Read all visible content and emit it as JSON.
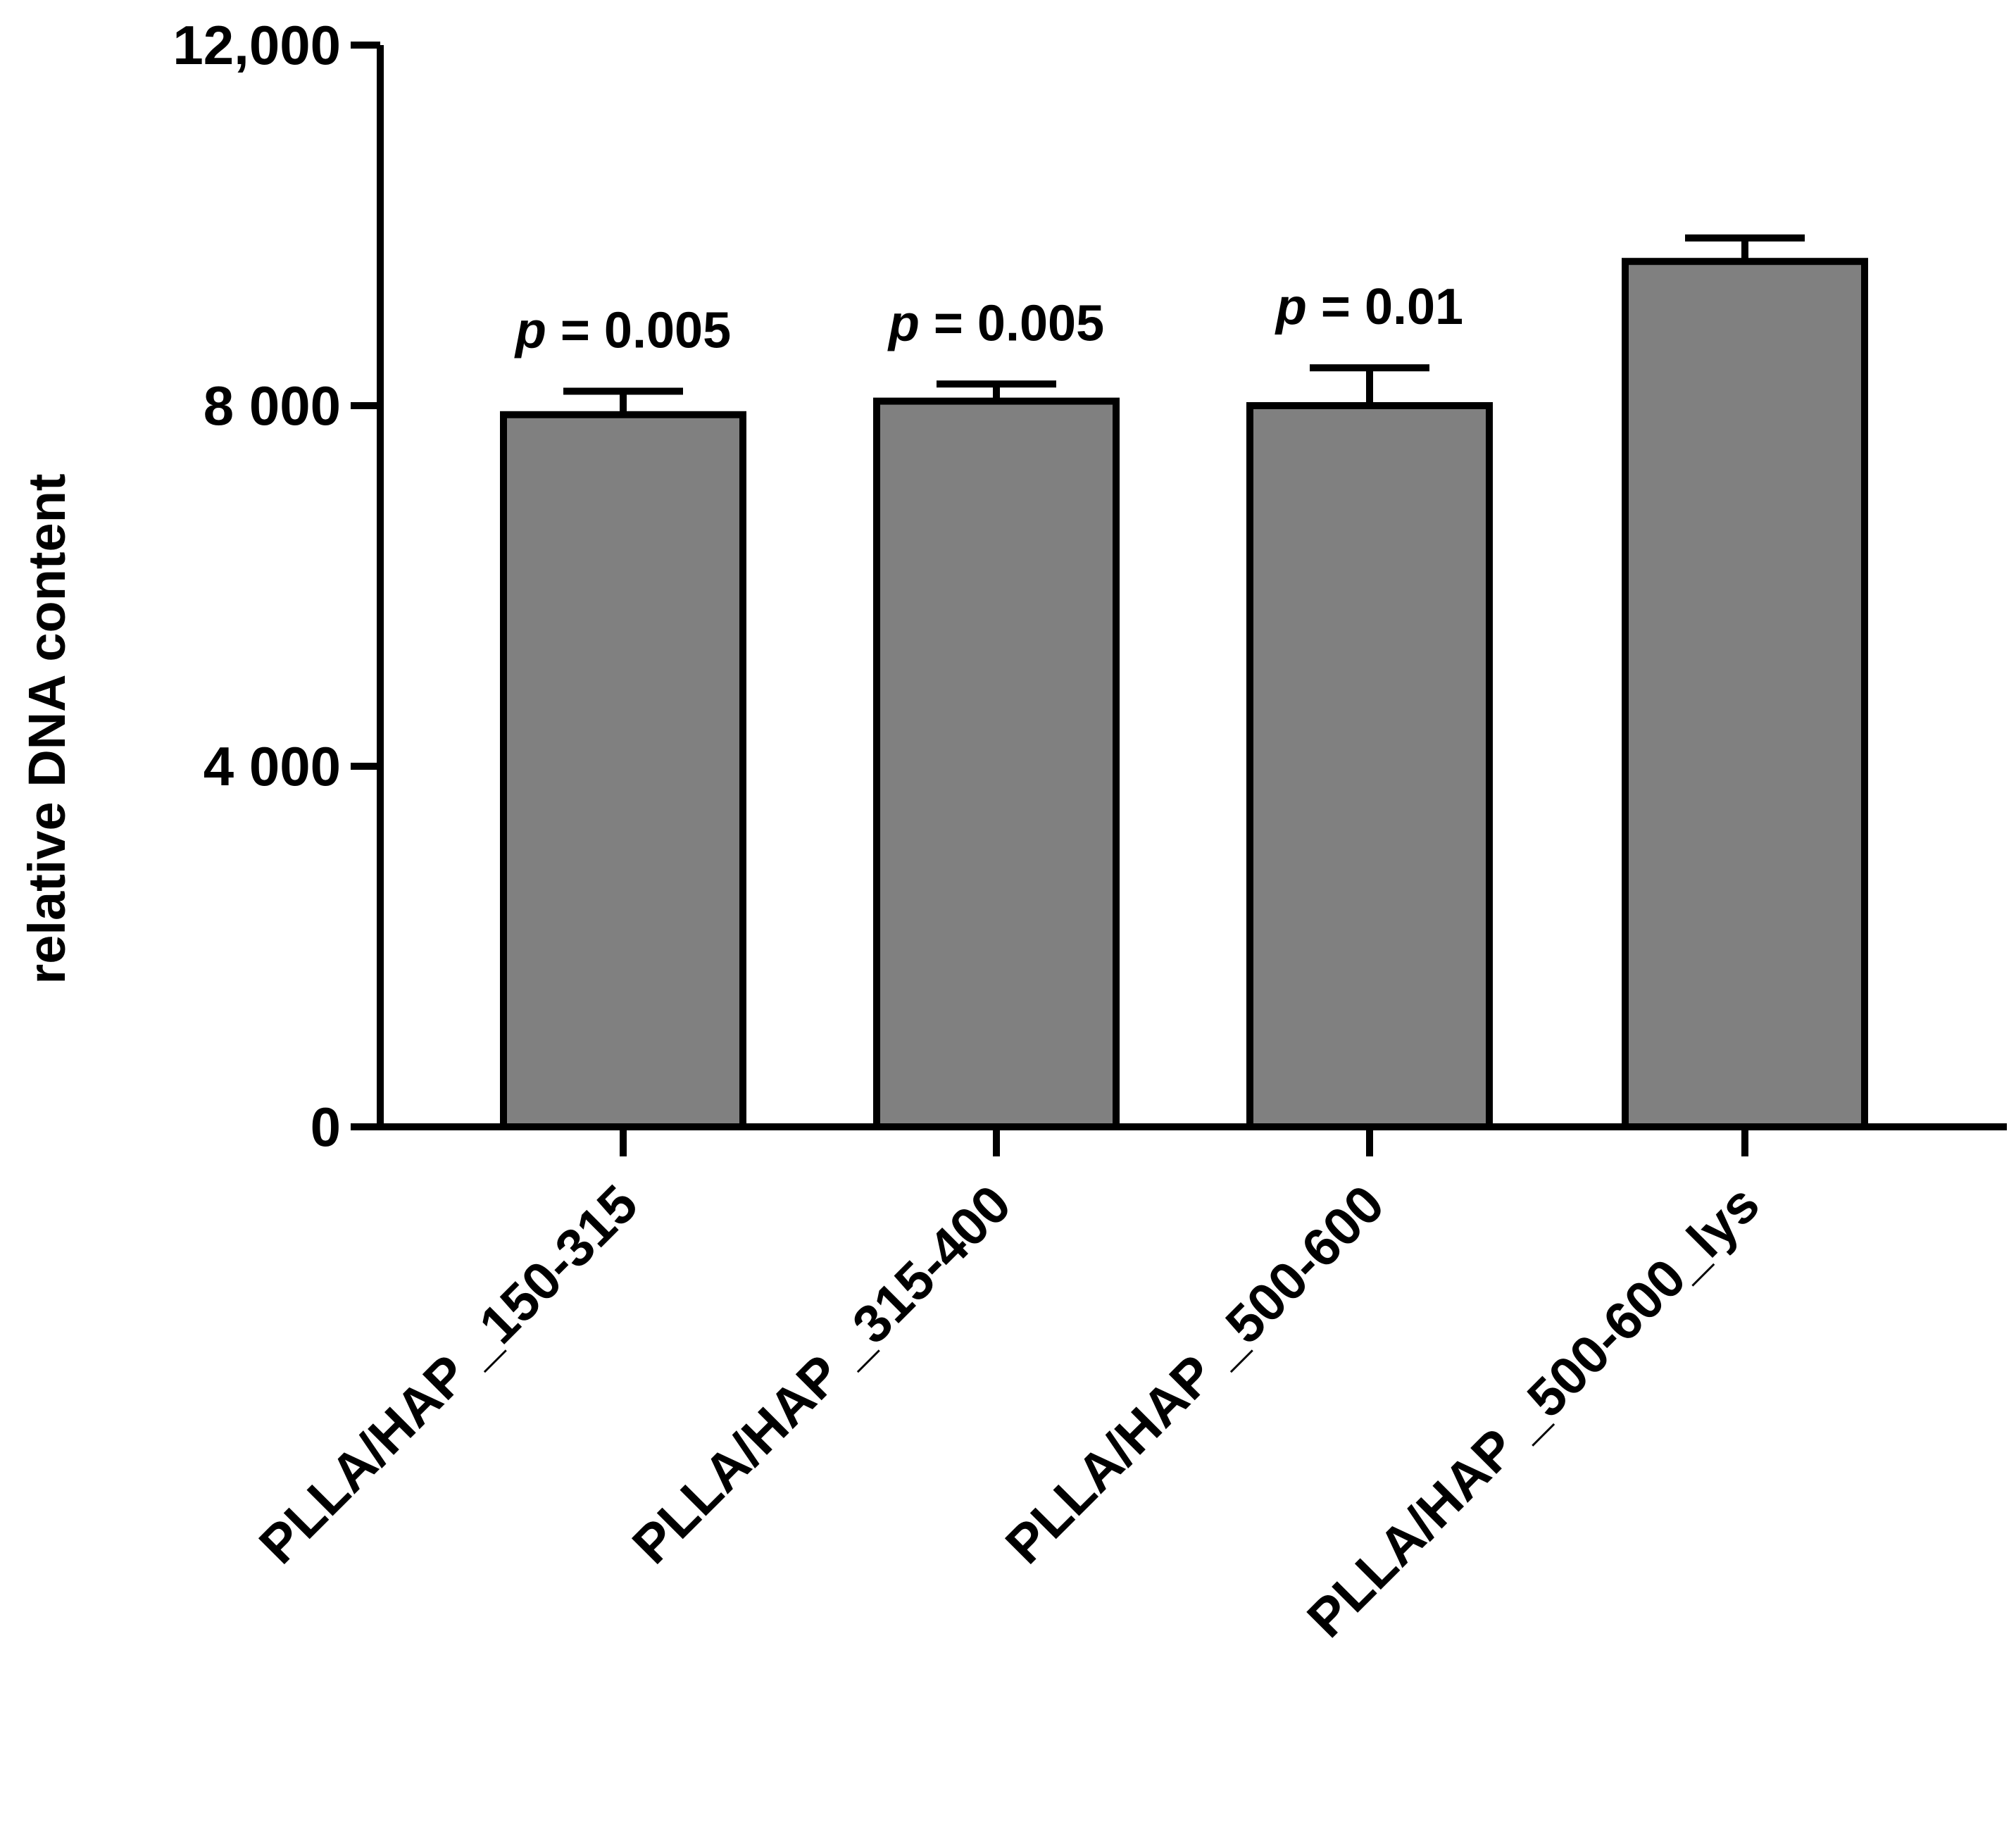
{
  "chart_data": {
    "type": "bar",
    "title": "",
    "xlabel": "",
    "ylabel": "relative DNA content",
    "ylim": [
      0,
      12000
    ],
    "yticks": [
      0,
      4000,
      8000,
      12000
    ],
    "ytick_labels": [
      "0",
      "4 000",
      "8 000",
      "12,000"
    ],
    "categories": [
      "PLLA/HAP _150-315",
      "PLLA/HAP _315-400",
      "PLLA/HAP _500-600",
      "PLLA/HAP _500-600_lys"
    ],
    "values": [
      7900,
      8050,
      8000,
      9600
    ],
    "errors": [
      260,
      190,
      420,
      260
    ],
    "annotations": [
      {
        "category_index": 0,
        "symbol": "p",
        "text": " = 0.005"
      },
      {
        "category_index": 1,
        "symbol": "p",
        "text": " = 0.005"
      },
      {
        "category_index": 2,
        "symbol": "p",
        "text": " = 0.01"
      }
    ],
    "grid": false,
    "legend": "none",
    "colors": {
      "bar_fill": "#808080",
      "bar_stroke": "#000000",
      "axis": "#000000"
    }
  }
}
